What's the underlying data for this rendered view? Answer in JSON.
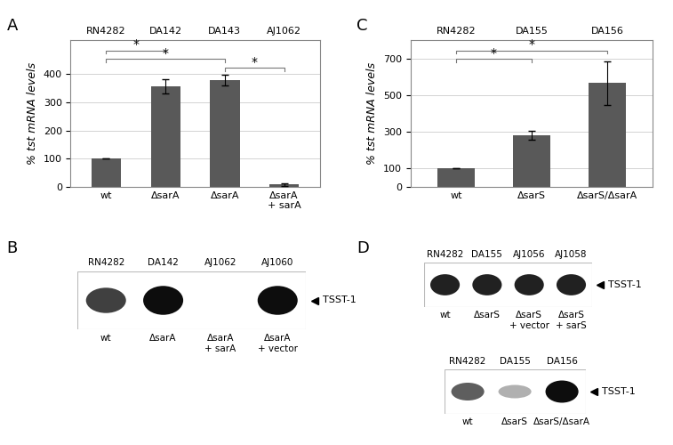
{
  "chart_data": [
    {
      "panel": "A",
      "type": "bar",
      "ylabel": "% tst mRNA levels",
      "strains": [
        "RN4282",
        "DA142",
        "DA143",
        "AJ1062"
      ],
      "categories": [
        "wt",
        "ΔsarA",
        "ΔsarA",
        "ΔsarA\n+ sarA"
      ],
      "values": [
        100,
        355,
        378,
        8
      ],
      "errors": [
        0,
        25,
        18,
        5
      ],
      "color": "#595959",
      "ylim": [
        0,
        520
      ],
      "yticks": [
        0,
        100,
        200,
        300,
        400
      ],
      "grid": true,
      "significance": [
        {
          "from": 0,
          "to": 1,
          "label": "*"
        },
        {
          "from": 0,
          "to": 2,
          "label": "*"
        },
        {
          "from": 2,
          "to": 3,
          "label": "*"
        }
      ]
    },
    {
      "panel": "C",
      "type": "bar",
      "ylabel": "% tst mRNA levels",
      "strains": [
        "RN4282",
        "DA155",
        "DA156"
      ],
      "categories": [
        "wt",
        "ΔsarS",
        "ΔsarS/ΔsarA"
      ],
      "values": [
        100,
        280,
        565
      ],
      "errors": [
        0,
        25,
        120
      ],
      "color": "#595959",
      "ylim": [
        0,
        800
      ],
      "yticks": [
        0,
        100,
        300,
        500,
        700
      ],
      "grid": true,
      "significance": [
        {
          "from": 0,
          "to": 2,
          "label": "*"
        },
        {
          "from": 0,
          "to": 1,
          "label": "*"
        }
      ]
    }
  ],
  "blots": [
    {
      "panel": "B",
      "lanes": [
        "RN4282",
        "DA142",
        "AJ1062",
        "AJ1060"
      ],
      "labels": [
        "wt",
        "ΔsarA",
        "ΔsarA\n+ sarA",
        "ΔsarA\n+ vector"
      ],
      "band_intensity": [
        0.75,
        1.0,
        0,
        1.0
      ],
      "band_label": "TSST-1"
    },
    {
      "panel": "D",
      "lanes": [
        "RN4282",
        "DA155",
        "AJ1056",
        "AJ1058"
      ],
      "labels": [
        "wt",
        "ΔsarS",
        "ΔsarS\n+ vector",
        "ΔsarS\n+ sarS"
      ],
      "band_intensity": [
        0.9,
        0.9,
        0.9,
        0.9
      ],
      "band_label": "TSST-1"
    },
    {
      "lanes": [
        "RN4282",
        "DA155",
        "DA156"
      ],
      "labels": [
        "wt",
        "ΔsarS",
        "ΔsarS/ΔsarA"
      ],
      "band_intensity": [
        0.6,
        0.2,
        1.0
      ],
      "band_label": "TSST-1"
    }
  ]
}
